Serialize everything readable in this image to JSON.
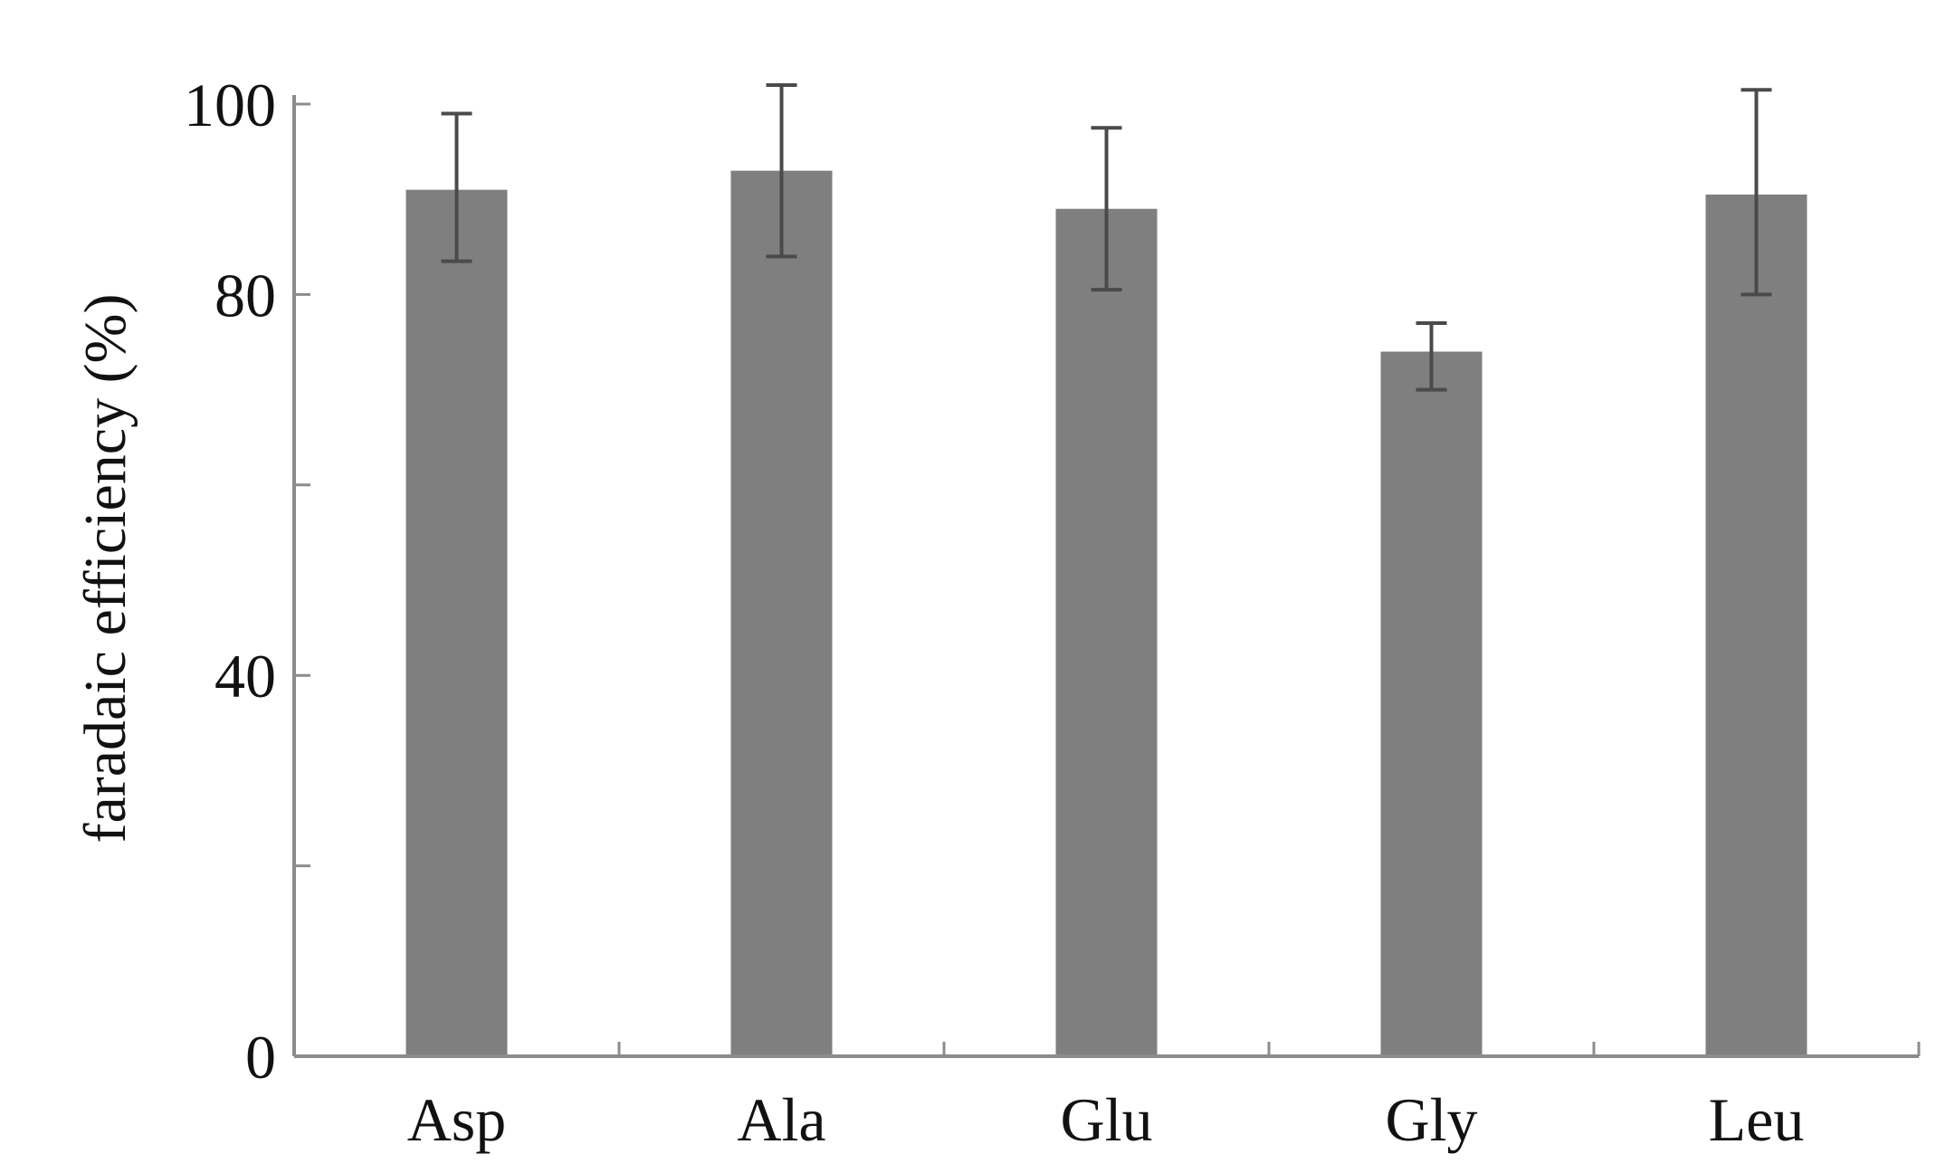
{
  "chart_data": {
    "type": "bar",
    "categories": [
      "Asp",
      "Ala",
      "Glu",
      "Gly",
      "Leu"
    ],
    "values": [
      91,
      93,
      89,
      74,
      90.5
    ],
    "error_low": [
      83.5,
      84,
      80.5,
      70,
      80
    ],
    "error_high": [
      99,
      102,
      97.5,
      77,
      101.5
    ],
    "title": "",
    "xlabel": "",
    "ylabel": "faradaic efficiency (%)",
    "ylim": [
      0,
      100
    ],
    "yticks": [
      0,
      20,
      40,
      60,
      80,
      100
    ],
    "ytick_labels": [
      "0",
      "",
      "40",
      "",
      "80",
      "100"
    ],
    "grid": false,
    "bar_color": "#7f7f7f",
    "axis_color": "#8c8c8c",
    "errorbar_color": "#4a4a4a"
  }
}
